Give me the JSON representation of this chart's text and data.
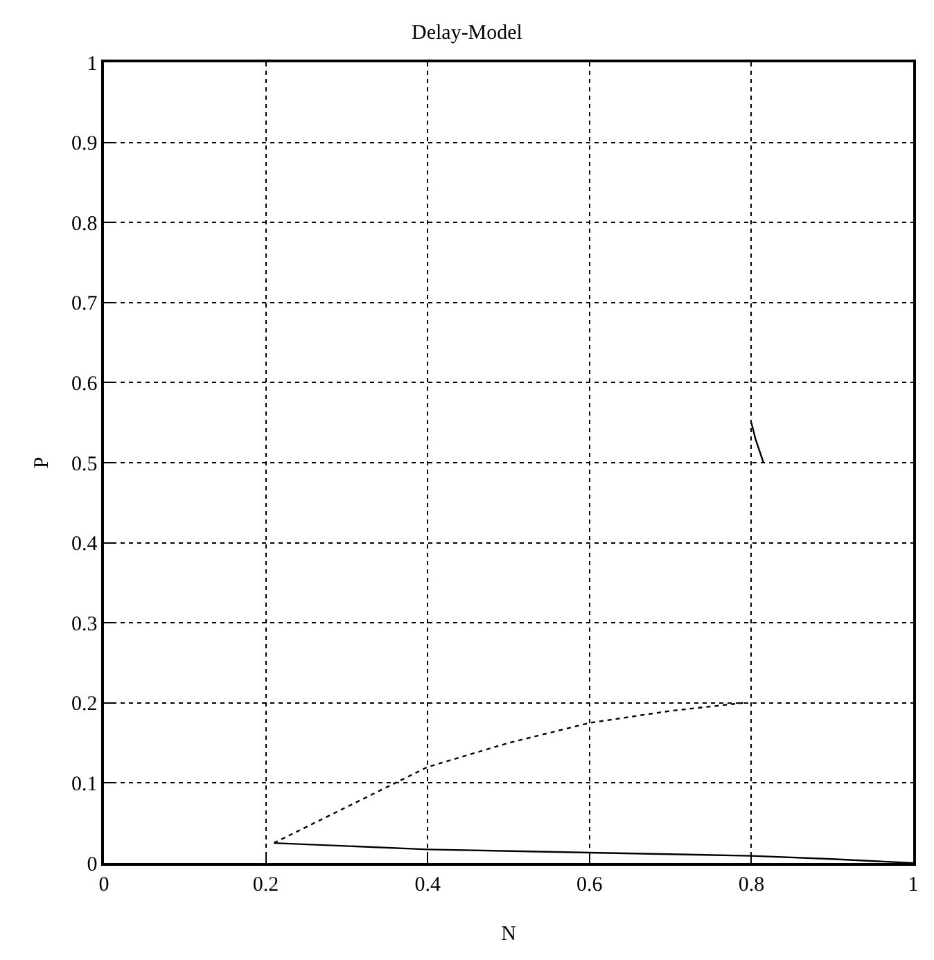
{
  "chart_data": {
    "type": "line",
    "title": "Delay-Model",
    "xlabel": "N",
    "ylabel": "P",
    "xlim": [
      0,
      1
    ],
    "xticks": [
      0,
      0.2,
      0.4,
      0.6,
      0.8,
      1
    ],
    "ylim": [
      0,
      1
    ],
    "yticks": [
      0,
      0.1,
      0.2,
      0.3,
      0.4,
      0.5,
      0.6,
      0.7,
      0.8,
      0.9,
      1
    ],
    "grid": true,
    "series": [
      {
        "color": "#000000",
        "line_style": "dotted",
        "x": [
          0.21,
          0.26,
          0.3,
          0.36,
          0.4,
          0.5,
          0.6,
          0.7,
          0.79
        ],
        "values": [
          0.025,
          0.05,
          0.07,
          0.1,
          0.12,
          0.15,
          0.175,
          0.19,
          0.2
        ]
      },
      {
        "color": "#000000",
        "line_style": "solid",
        "x": [
          0.21,
          0.4,
          0.6,
          0.8,
          0.9,
          1
        ],
        "values": [
          0.025,
          0.017,
          0.013,
          0.009,
          0.005,
          0
        ]
      },
      {
        "color": "#000000",
        "line_style": "solid",
        "x": [
          0.8,
          0.805,
          0.815
        ],
        "values": [
          0.55,
          0.53,
          0.5
        ]
      }
    ]
  }
}
